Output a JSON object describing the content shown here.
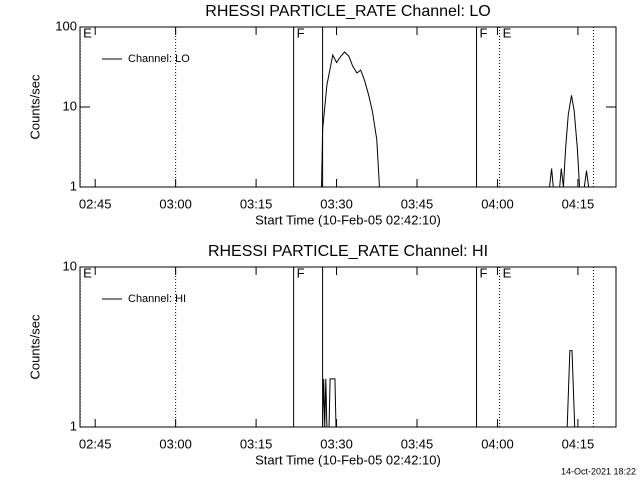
{
  "chart_data": [
    {
      "type": "line",
      "title": "RHESSI PARTICLE_RATE Channel: LO",
      "x_label": "Start Time (10-Feb-05 02:42:10)",
      "y_label": "Counts/sec",
      "x": [
        207.2,
        207.4,
        208.2,
        209.3,
        210.0,
        210.8,
        211.5,
        212.3,
        213.0,
        213.8,
        214.5,
        215.2,
        216.0,
        216.7,
        217.5,
        218.0,
        249.7,
        250.1,
        250.4,
        251.6,
        251.9,
        252.3,
        252.7,
        253.2,
        253.8,
        254.3,
        254.9,
        255.3,
        256.2,
        256.6,
        257.0
      ],
      "series": [
        {
          "name": "Channel: LO",
          "color": "#000000",
          "values": [
            1,
            5.2,
            18.8,
            44.7,
            36,
            43,
            48.7,
            43,
            32.5,
            26.6,
            29,
            21.7,
            14,
            8.7,
            3.9,
            1,
            1,
            1.7,
            1,
            1,
            1.7,
            1,
            3,
            8,
            14,
            9,
            3,
            1,
            1,
            1.6,
            1
          ]
        }
      ],
      "xlim": [
        162.17,
        262.1
      ],
      "xticks": [
        {
          "value": 165,
          "label": "02:45"
        },
        {
          "value": 180,
          "label": "03:00"
        },
        {
          "value": 195,
          "label": "03:15"
        },
        {
          "value": 210,
          "label": "03:30"
        },
        {
          "value": 225,
          "label": "03:45"
        },
        {
          "value": 240,
          "label": "04:00"
        },
        {
          "value": 255,
          "label": "04:15"
        }
      ],
      "ylim": [
        1,
        100
      ],
      "yticks": [
        1,
        10,
        100
      ],
      "log_y": true,
      "legend": "upper left",
      "flags": [
        {
          "x": 162.2,
          "label": "E",
          "style": "dotted"
        },
        {
          "x": 180,
          "label": null,
          "style": "dotted"
        },
        {
          "x": 202.0,
          "label": "F",
          "style": "solid"
        },
        {
          "x": 207.4,
          "label": null,
          "style": "solid"
        },
        {
          "x": 236.1,
          "label": "F",
          "style": "solid"
        },
        {
          "x": 240.4,
          "label": "E",
          "style": "dotted"
        },
        {
          "x": 257.9,
          "label": null,
          "style": "dotted"
        }
      ]
    },
    {
      "type": "line",
      "title": "RHESSI PARTICLE_RATE Channel: HI",
      "x_label": "Start Time (10-Feb-05 02:42:10)",
      "y_label": "Counts/sec",
      "x": [
        207.4,
        207.6,
        207.8,
        208.0,
        208.2,
        208.6,
        208.8,
        209.7,
        209.9,
        253.0,
        253.5,
        253.9,
        254.4
      ],
      "series": [
        {
          "name": "Channel: HI",
          "color": "#000000",
          "values": [
            1,
            2,
            1,
            2,
            1,
            1,
            2,
            2,
            1,
            1,
            3,
            3,
            1
          ]
        }
      ],
      "xlim": [
        162.17,
        262.1
      ],
      "xticks": [
        {
          "value": 165,
          "label": "02:45"
        },
        {
          "value": 180,
          "label": "03:00"
        },
        {
          "value": 195,
          "label": "03:15"
        },
        {
          "value": 210,
          "label": "03:30"
        },
        {
          "value": 225,
          "label": "03:45"
        },
        {
          "value": 240,
          "label": "04:00"
        },
        {
          "value": 255,
          "label": "04:15"
        }
      ],
      "ylim": [
        1,
        10
      ],
      "yticks": [
        1,
        10
      ],
      "log_y": true,
      "legend": "upper left",
      "flags": [
        {
          "x": 162.2,
          "label": "E",
          "style": "dotted"
        },
        {
          "x": 180,
          "label": null,
          "style": "dotted"
        },
        {
          "x": 202.0,
          "label": "F",
          "style": "solid"
        },
        {
          "x": 207.4,
          "label": null,
          "style": "solid"
        },
        {
          "x": 236.1,
          "label": "F",
          "style": "solid"
        },
        {
          "x": 240.4,
          "label": "E",
          "style": "dotted"
        },
        {
          "x": 257.9,
          "label": null,
          "style": "dotted"
        }
      ]
    }
  ],
  "footer": "14-Oct-2021 18:22"
}
